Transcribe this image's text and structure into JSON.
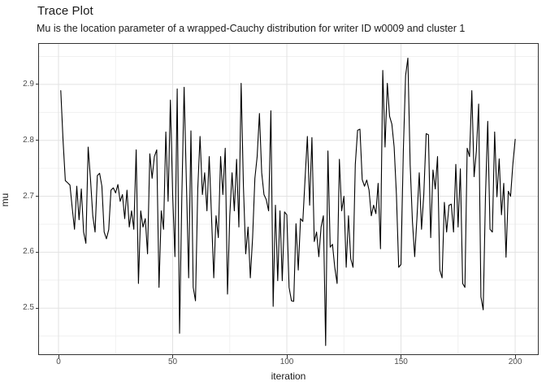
{
  "chart_data": {
    "type": "line",
    "title": "Trace Plot",
    "subtitle": "Mu is the location parameter of a wrapped-Cauchy distribution for writer ID w0009 and cluster 1",
    "xlabel": "iteration",
    "ylabel": "mu",
    "x_ticks": [
      0,
      50,
      100,
      150,
      200
    ],
    "x_tick_labels": [
      "0",
      "50",
      "100",
      "150",
      "200"
    ],
    "y_ticks": [
      2.5,
      2.6,
      2.7,
      2.8,
      2.9
    ],
    "y_tick_labels": [
      "2.5",
      "2.6",
      "2.7",
      "2.8",
      "2.9"
    ],
    "x_minor_ticks": [
      25,
      75,
      125,
      175
    ],
    "y_minor_ticks": [
      2.45,
      2.55,
      2.65,
      2.75,
      2.85,
      2.95
    ],
    "xlim": [
      -8.9,
      210.3
    ],
    "ylim": [
      2.416,
      2.974
    ],
    "grid": true,
    "legend": "none",
    "style": {
      "line_color": "#000000",
      "line_width": 1.1,
      "panel_background": "#ffffff",
      "panel_border": "#333333",
      "grid_major": "#e2e2e2",
      "grid_minor": "#f0f0f0",
      "tick_color": "#333333",
      "tick_label_color": "#4d4d4d",
      "text_color": "#1a1a1a"
    },
    "series": [
      {
        "name": "mu",
        "x_start": 1,
        "values": [
          2.889,
          2.8,
          2.728,
          2.724,
          2.72,
          2.679,
          2.641,
          2.718,
          2.658,
          2.713,
          2.636,
          2.616,
          2.788,
          2.73,
          2.665,
          2.636,
          2.737,
          2.741,
          2.718,
          2.636,
          2.624,
          2.64,
          2.711,
          2.715,
          2.706,
          2.721,
          2.691,
          2.703,
          2.66,
          2.711,
          2.645,
          2.674,
          2.641,
          2.783,
          2.544,
          2.674,
          2.645,
          2.66,
          2.597,
          2.776,
          2.732,
          2.771,
          2.783,
          2.537,
          2.674,
          2.641,
          2.815,
          2.691,
          2.872,
          2.703,
          2.592,
          2.892,
          2.455,
          2.7,
          2.895,
          2.725,
          2.554,
          2.817,
          2.537,
          2.513,
          2.713,
          2.807,
          2.703,
          2.742,
          2.674,
          2.771,
          2.665,
          2.554,
          2.665,
          2.626,
          2.771,
          2.703,
          2.786,
          2.525,
          2.665,
          2.742,
          2.674,
          2.766,
          2.645,
          2.902,
          2.718,
          2.597,
          2.645,
          2.554,
          2.626,
          2.732,
          2.771,
          2.848,
          2.742,
          2.703,
          2.694,
          2.674,
          2.853,
          2.503,
          2.684,
          2.549,
          2.674,
          2.549,
          2.672,
          2.667,
          2.537,
          2.513,
          2.512,
          2.651,
          2.568,
          2.66,
          2.655,
          2.732,
          2.807,
          2.684,
          2.805,
          2.619,
          2.636,
          2.592,
          2.645,
          2.665,
          2.433,
          2.781,
          2.609,
          2.614,
          2.573,
          2.544,
          2.766,
          2.674,
          2.7,
          2.573,
          2.665,
          2.588,
          2.573,
          2.757,
          2.818,
          2.82,
          2.73,
          2.718,
          2.729,
          2.711,
          2.665,
          2.684,
          2.669,
          2.723,
          2.606,
          2.925,
          2.788,
          2.902,
          2.843,
          2.829,
          2.788,
          2.703,
          2.573,
          2.578,
          2.781,
          2.916,
          2.947,
          2.757,
          2.655,
          2.592,
          2.662,
          2.742,
          2.641,
          2.703,
          2.812,
          2.81,
          2.626,
          2.747,
          2.713,
          2.771,
          2.568,
          2.554,
          2.689,
          2.636,
          2.684,
          2.686,
          2.636,
          2.757,
          2.645,
          2.749,
          2.544,
          2.537,
          2.786,
          2.771,
          2.889,
          2.735,
          2.781,
          2.865,
          2.52,
          2.497,
          2.7,
          2.834,
          2.641,
          2.636,
          2.815,
          2.699,
          2.767,
          2.667,
          2.723,
          2.591,
          2.709,
          2.7,
          2.757,
          2.802
        ]
      }
    ]
  }
}
